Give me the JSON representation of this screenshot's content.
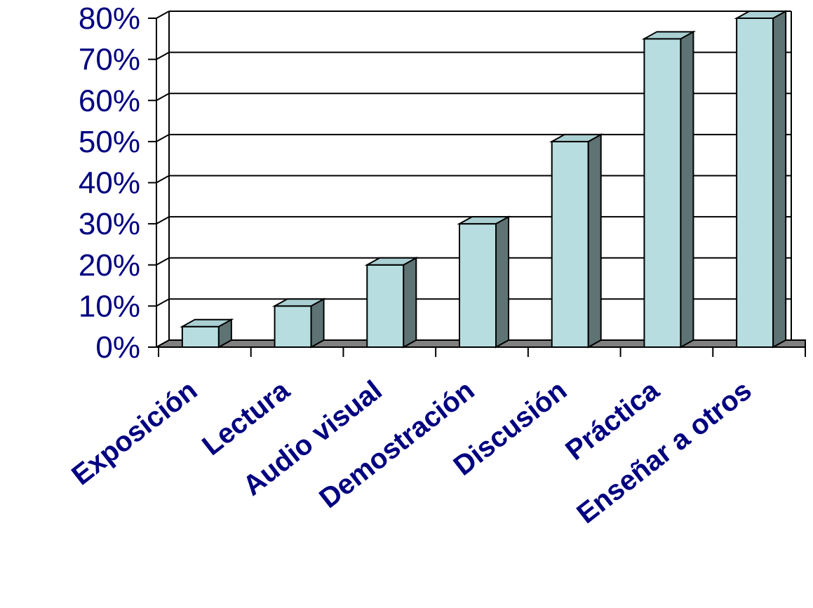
{
  "chart_data": {
    "type": "bar",
    "title": "",
    "xlabel": "",
    "ylabel": "",
    "categories": [
      "Exposición",
      "Lectura",
      "Audio visual",
      "Demostración",
      "Discusión",
      "Práctica",
      "Enseñar a otros"
    ],
    "values": [
      5,
      10,
      20,
      30,
      50,
      75,
      80
    ],
    "ylim": [
      0,
      80
    ],
    "yticks": [
      "0%",
      "10%",
      "20%",
      "30%",
      "40%",
      "50%",
      "60%",
      "70%",
      "80%"
    ],
    "grid": true,
    "style": "3d-column",
    "colors": {
      "bar_front": "#b7dde0",
      "bar_side": "#5e7374",
      "bar_top": "#a9cfd2",
      "floor": "#808080",
      "text": "#000080"
    }
  }
}
